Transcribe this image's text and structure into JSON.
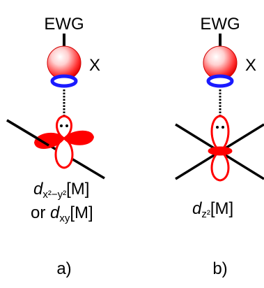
{
  "panel_a": {
    "group": "EWG",
    "atom": "X",
    "orbital_line1_symbol": "d",
    "orbital_line1_subscript": "x²−y²",
    "orbital_line1_suffix": "[M]",
    "orbital_line2_prefix": "or ",
    "orbital_line2_symbol": "d",
    "orbital_line2_subscript": "xy",
    "orbital_line2_suffix": "[M]",
    "caption": "a)"
  },
  "panel_b": {
    "group": "EWG",
    "atom": "X",
    "orbital_symbol": "d",
    "orbital_subscript": "z²",
    "orbital_suffix": "[M]",
    "caption": "b)"
  },
  "colors": {
    "lobe_red": "#ff0000",
    "lone_pair_blue": "#1a1aff",
    "line_black": "#000000"
  }
}
